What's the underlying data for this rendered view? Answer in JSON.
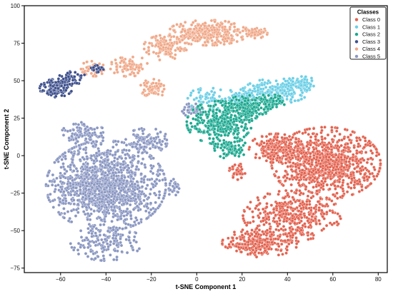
{
  "chart_data": {
    "type": "scatter",
    "title": "",
    "xlabel": "t-SNE Component 1",
    "ylabel": "t-SNE Component 2",
    "xlim": [
      -76,
      84
    ],
    "ylim": [
      -78,
      100
    ],
    "xticks": [
      -60,
      -40,
      -20,
      0,
      20,
      40,
      60,
      80
    ],
    "yticks": [
      -75,
      -50,
      -25,
      0,
      25,
      50,
      75,
      100
    ],
    "grid": false,
    "legend": {
      "title": "Classes",
      "placement": "top-right"
    },
    "series": [
      {
        "name": "Class 0",
        "color": "#e3624f",
        "regions": [
          {
            "cx": 57,
            "cy": -5,
            "rx": 20,
            "ry": 20,
            "n": 950
          },
          {
            "cx": 42,
            "cy": -40,
            "rx": 18,
            "ry": 14,
            "n": 400
          },
          {
            "cx": 28,
            "cy": -58,
            "rx": 14,
            "ry": 8,
            "n": 250
          },
          {
            "cx": 35,
            "cy": 5,
            "rx": 10,
            "ry": 8,
            "n": 200
          },
          {
            "cx": 18,
            "cy": -10,
            "rx": 3,
            "ry": 5,
            "n": 40
          }
        ]
      },
      {
        "name": "Class 1",
        "color": "#6bcfe6",
        "regions": [
          {
            "cx": 35,
            "cy": 43,
            "rx": 12,
            "ry": 7,
            "n": 180
          },
          {
            "cx": 46,
            "cy": 48,
            "rx": 6,
            "ry": 4,
            "n": 80
          },
          {
            "cx": 20,
            "cy": 38,
            "rx": 7,
            "ry": 6,
            "n": 90
          },
          {
            "cx": 5,
            "cy": 38,
            "rx": 8,
            "ry": 6,
            "n": 60
          }
        ]
      },
      {
        "name": "Class 2",
        "color": "#1aa88f",
        "regions": [
          {
            "cx": 10,
            "cy": 22,
            "rx": 12,
            "ry": 12,
            "n": 380
          },
          {
            "cx": 22,
            "cy": 32,
            "rx": 8,
            "ry": 7,
            "n": 160
          },
          {
            "cx": 15,
            "cy": 5,
            "rx": 6,
            "ry": 6,
            "n": 90
          },
          {
            "cx": 32,
            "cy": 36,
            "rx": 6,
            "ry": 4,
            "n": 60
          }
        ]
      },
      {
        "name": "Class 3",
        "color": "#3d4f8c",
        "regions": [
          {
            "cx": -62,
            "cy": 45,
            "rx": 6,
            "ry": 5,
            "n": 110
          },
          {
            "cx": -55,
            "cy": 52,
            "rx": 5,
            "ry": 4,
            "n": 40
          },
          {
            "cx": -44,
            "cy": 58,
            "rx": 3,
            "ry": 3,
            "n": 20
          }
        ]
      },
      {
        "name": "Class 4",
        "color": "#f0a888",
        "regions": [
          {
            "cx": 5,
            "cy": 82,
            "rx": 15,
            "ry": 7,
            "n": 330
          },
          {
            "cx": -14,
            "cy": 72,
            "rx": 8,
            "ry": 7,
            "n": 140
          },
          {
            "cx": -30,
            "cy": 60,
            "rx": 7,
            "ry": 6,
            "n": 80
          },
          {
            "cx": -19,
            "cy": 45,
            "rx": 5,
            "ry": 5,
            "n": 60
          },
          {
            "cx": 26,
            "cy": 82,
            "rx": 5,
            "ry": 3,
            "n": 50
          },
          {
            "cx": -46,
            "cy": 57,
            "rx": 5,
            "ry": 5,
            "n": 50
          }
        ]
      },
      {
        "name": "Class 5",
        "color": "#8a97c2",
        "regions": [
          {
            "cx": -40,
            "cy": -20,
            "rx": 22,
            "ry": 25,
            "n": 1350
          },
          {
            "cx": -40,
            "cy": -58,
            "rx": 13,
            "ry": 10,
            "n": 160
          },
          {
            "cx": -22,
            "cy": 10,
            "rx": 8,
            "ry": 7,
            "n": 100
          },
          {
            "cx": -50,
            "cy": 15,
            "rx": 8,
            "ry": 6,
            "n": 100
          },
          {
            "cx": -2,
            "cy": 30,
            "rx": 4,
            "ry": 4,
            "n": 40
          },
          {
            "cx": -10,
            "cy": -20,
            "rx": 3,
            "ry": 6,
            "n": 30
          }
        ]
      }
    ]
  }
}
